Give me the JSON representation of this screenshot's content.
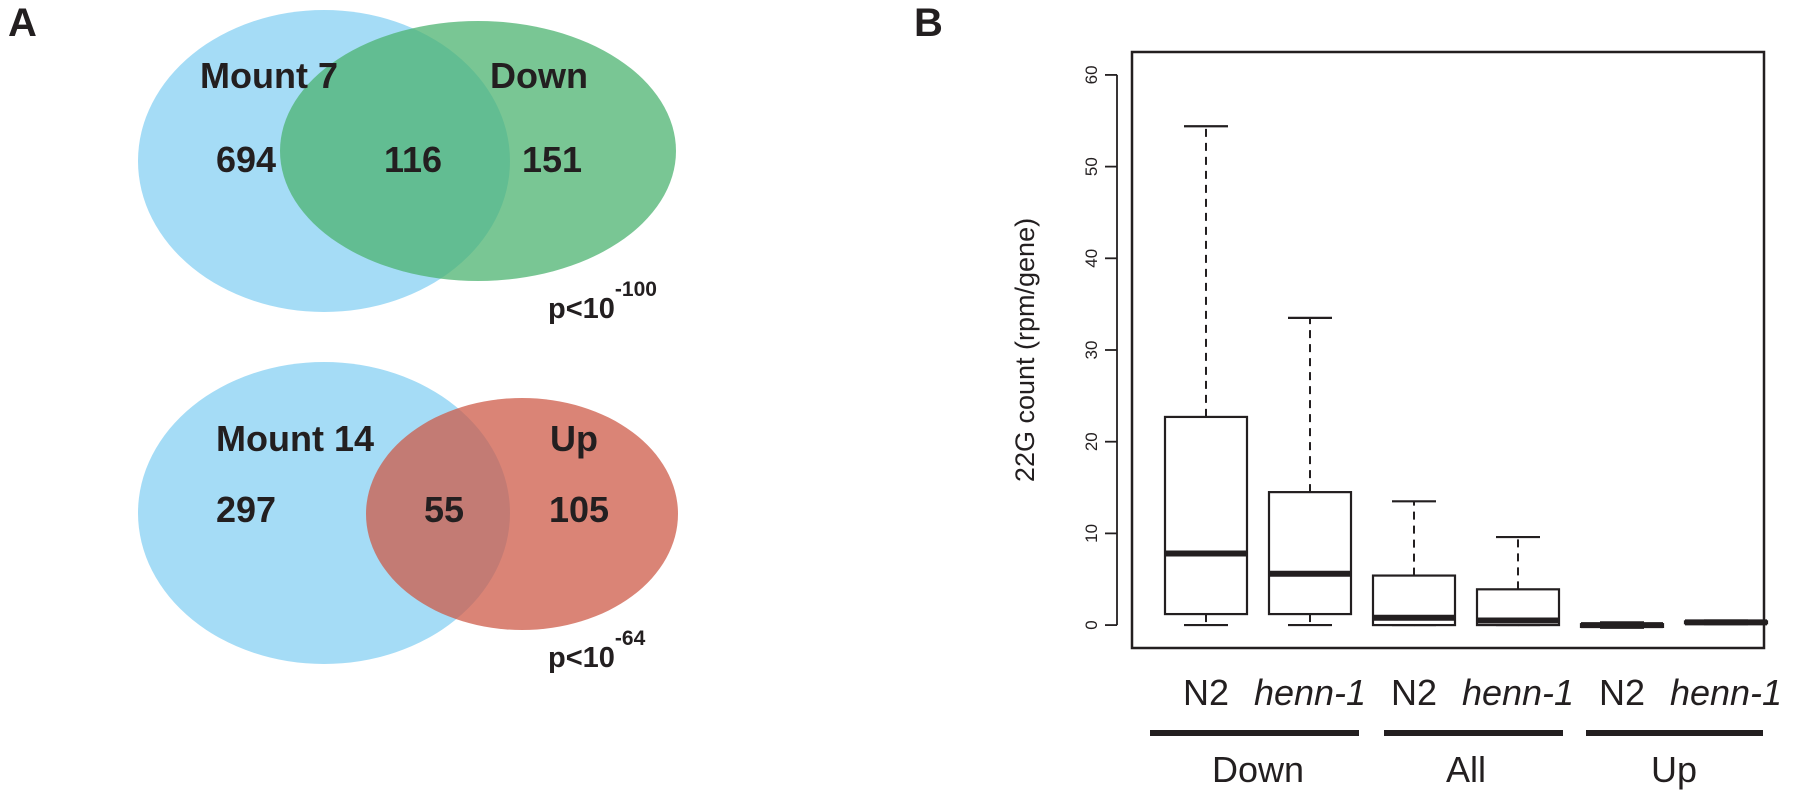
{
  "panel_a": {
    "label": "A",
    "venn_top": {
      "left_set": "Mount 7",
      "right_set": "Down",
      "left_only": "694",
      "overlap": "116",
      "right_only": "151",
      "pvalue_base": "p<10",
      "pvalue_exp": "-100",
      "colors": {
        "left": "#8fd3f4",
        "right": "#4cb370",
        "overlap": "#2eaa84"
      }
    },
    "venn_bottom": {
      "left_set": "Mount 14",
      "right_set": "Up",
      "left_only": "297",
      "overlap": "55",
      "right_only": "105",
      "pvalue_base": "p<10",
      "pvalue_exp": "-64",
      "colors": {
        "left": "#8fd3f4",
        "right": "#cd5b48",
        "overlap": "#a8776e"
      }
    }
  },
  "panel_b": {
    "label": "B"
  },
  "chart_data": {
    "type": "boxplot",
    "ylabel": "22G count (rpm/gene)",
    "ylim": [
      -2.5,
      62.5
    ],
    "yticks": [
      0,
      10,
      20,
      30,
      40,
      50,
      60
    ],
    "categories": [
      "N2",
      "henn-1",
      "N2",
      "henn-1",
      "N2",
      "henn-1"
    ],
    "groups": [
      {
        "label": "Down",
        "members": [
          0,
          1
        ]
      },
      {
        "label": "All",
        "members": [
          2,
          3
        ]
      },
      {
        "label": "Up",
        "members": [
          4,
          5
        ]
      }
    ],
    "boxes": [
      {
        "label": "N2",
        "italic": false,
        "whisker_low": 0,
        "q1": 1.2,
        "median": 7.8,
        "q3": 22.7,
        "whisker_high": 54.4
      },
      {
        "label": "henn-1",
        "italic": true,
        "whisker_low": 0,
        "q1": 1.2,
        "median": 5.6,
        "q3": 14.5,
        "whisker_high": 33.5
      },
      {
        "label": "N2",
        "italic": false,
        "whisker_low": 0,
        "q1": 0,
        "median": 0.8,
        "q3": 5.4,
        "whisker_high": 13.5
      },
      {
        "label": "henn-1",
        "italic": true,
        "whisker_low": 0,
        "q1": 0,
        "median": 0.5,
        "q3": 3.9,
        "whisker_high": 9.6
      },
      {
        "label": "N2",
        "italic": false,
        "whisker_low": -0.3,
        "q1": -0.2,
        "median": 0,
        "q3": 0.1,
        "whisker_high": 0.3
      },
      {
        "label": "henn-1",
        "italic": true,
        "whisker_low": 0.1,
        "q1": 0.2,
        "median": 0.3,
        "q3": 0.4,
        "whisker_high": 0.5
      }
    ]
  }
}
